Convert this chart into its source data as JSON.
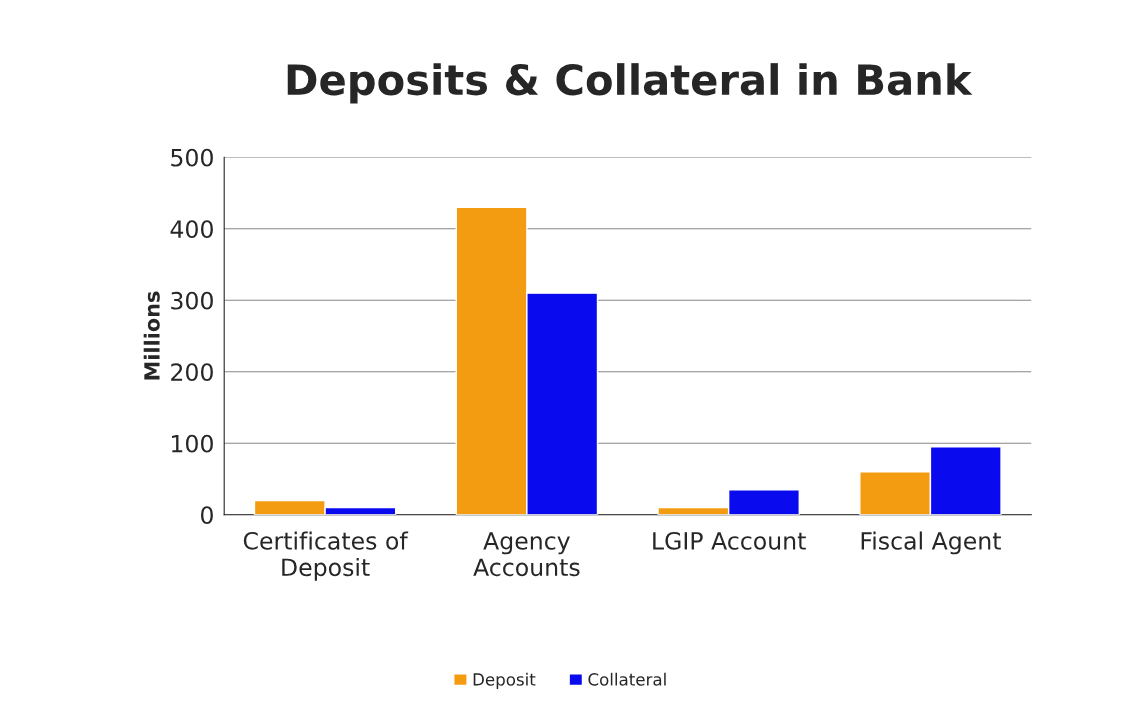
{
  "chart_data": {
    "type": "bar",
    "title": "Deposits & Collateral in Bank",
    "ylabel": "Millions",
    "categories": [
      "Certificates of\nDeposit",
      "Agency\nAccounts",
      "LGIP Account",
      "Fiscal Agent"
    ],
    "series": [
      {
        "name": "Deposit",
        "color": "#f39c12",
        "values": [
          20,
          430,
          10,
          60
        ]
      },
      {
        "name": "Collateral",
        "color": "#0a0aef",
        "values": [
          10,
          310,
          35,
          95
        ]
      }
    ],
    "ylim": [
      0,
      500
    ],
    "yticks": [
      0,
      100,
      200,
      300,
      400,
      500
    ],
    "grid": "y",
    "legend": "bottom"
  }
}
